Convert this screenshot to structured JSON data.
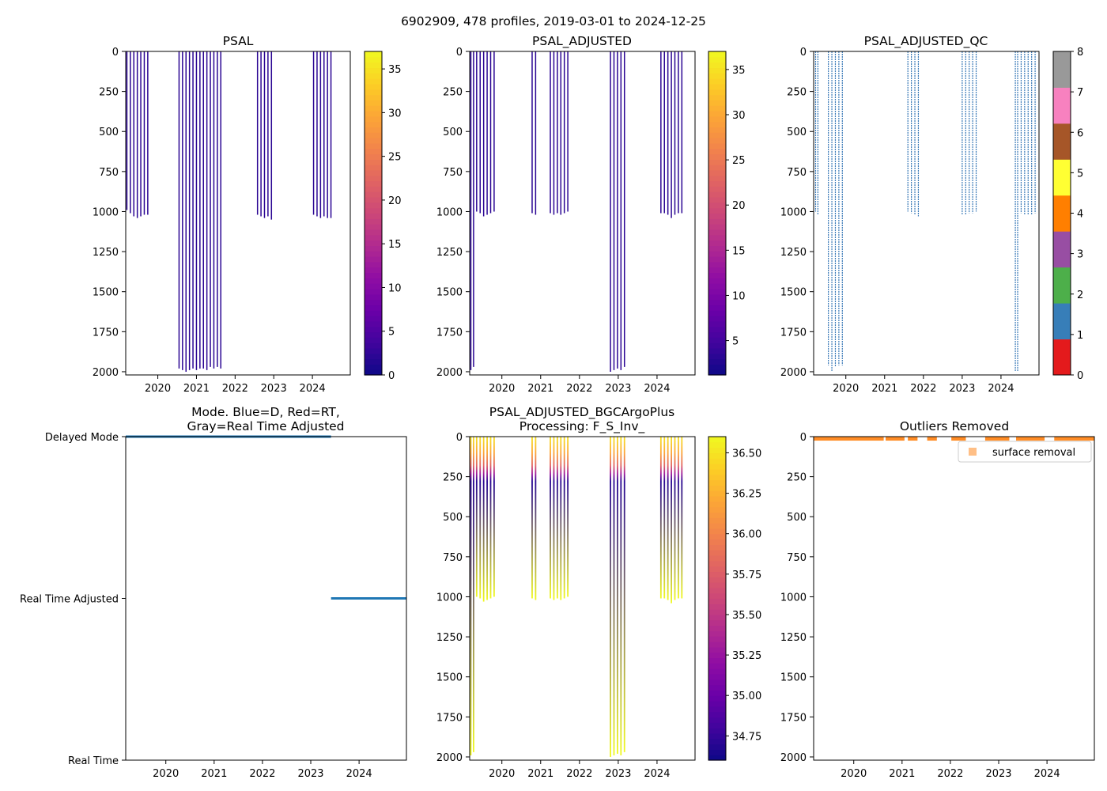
{
  "figure": {
    "suptitle": "6902909, 478 profiles, 2019-03-01 to 2024-12-25"
  },
  "colors": {
    "profile_line": "#2a0593",
    "qc_line": "#3a7ab8",
    "mode_line": "#1f77b4",
    "outlier": "#ff7f0e",
    "plasma": [
      "#0d0887",
      "#41049d",
      "#6a00a8",
      "#8f0da4",
      "#b12a90",
      "#cc4778",
      "#e16462",
      "#f2844b",
      "#fca636",
      "#fcce25",
      "#f0f921"
    ],
    "qc_palette": [
      "#e41a1c",
      "#377eb8",
      "#4daf4a",
      "#984ea3",
      "#ff7f00",
      "#ffff33",
      "#a65628",
      "#f781bf",
      "#999999"
    ]
  },
  "chart_data": [
    {
      "id": "psal",
      "type": "heatmap",
      "title": "PSAL",
      "xlabel": "",
      "ylabel": "",
      "xlim": [
        2019.17,
        2024.98
      ],
      "ylim": [
        2020,
        0
      ],
      "x_ticks": [
        2020,
        2021,
        2022,
        2023,
        2024
      ],
      "y_ticks": [
        0,
        250,
        500,
        750,
        1000,
        1250,
        1500,
        1750,
        2000
      ],
      "profiles": [
        {
          "t": 2019.2,
          "depth": 990
        },
        {
          "t": 2019.29,
          "depth": 1010
        },
        {
          "t": 2019.38,
          "depth": 1030
        },
        {
          "t": 2019.47,
          "depth": 1040
        },
        {
          "t": 2019.56,
          "depth": 1030
        },
        {
          "t": 2019.65,
          "depth": 1020
        },
        {
          "t": 2019.74,
          "depth": 1020
        },
        {
          "t": 2020.55,
          "depth": 1980
        },
        {
          "t": 2020.64,
          "depth": 1990
        },
        {
          "t": 2020.73,
          "depth": 2000
        },
        {
          "t": 2020.82,
          "depth": 1990
        },
        {
          "t": 2020.91,
          "depth": 1980
        },
        {
          "t": 2021.0,
          "depth": 1990
        },
        {
          "t": 2021.09,
          "depth": 1980
        },
        {
          "t": 2021.18,
          "depth": 1980
        },
        {
          "t": 2021.27,
          "depth": 1990
        },
        {
          "t": 2021.36,
          "depth": 1970
        },
        {
          "t": 2021.45,
          "depth": 1980
        },
        {
          "t": 2021.54,
          "depth": 1970
        },
        {
          "t": 2021.63,
          "depth": 1980
        },
        {
          "t": 2022.58,
          "depth": 1020
        },
        {
          "t": 2022.67,
          "depth": 1030
        },
        {
          "t": 2022.76,
          "depth": 1040
        },
        {
          "t": 2022.85,
          "depth": 1030
        },
        {
          "t": 2022.94,
          "depth": 1050
        },
        {
          "t": 2024.03,
          "depth": 1020
        },
        {
          "t": 2024.12,
          "depth": 1030
        },
        {
          "t": 2024.21,
          "depth": 1040
        },
        {
          "t": 2024.3,
          "depth": 1030
        },
        {
          "t": 2024.39,
          "depth": 1040
        },
        {
          "t": 2024.48,
          "depth": 1040
        }
      ],
      "colorbar": {
        "colormap": "plasma_r",
        "range": [
          0,
          37
        ],
        "ticks": [
          0,
          5,
          10,
          15,
          20,
          25,
          30,
          35
        ],
        "tick_labels": [
          "0",
          "5",
          "10",
          "15",
          "20",
          "25",
          "30",
          "35"
        ]
      }
    },
    {
      "id": "psal_adj",
      "type": "heatmap",
      "title": "PSAL_ADJUSTED",
      "xlabel": "",
      "ylabel": "",
      "xlim": [
        2019.17,
        2024.98
      ],
      "ylim": [
        2020,
        0
      ],
      "x_ticks": [
        2020,
        2021,
        2022,
        2023,
        2024
      ],
      "y_ticks": [
        0,
        250,
        500,
        750,
        1000,
        1250,
        1500,
        1750,
        2000
      ],
      "profiles": [
        {
          "t": 2019.2,
          "depth": 1990
        },
        {
          "t": 2019.27,
          "depth": 1970
        },
        {
          "t": 2019.35,
          "depth": 1000
        },
        {
          "t": 2019.44,
          "depth": 1010
        },
        {
          "t": 2019.53,
          "depth": 1030
        },
        {
          "t": 2019.62,
          "depth": 1020
        },
        {
          "t": 2019.71,
          "depth": 1010
        },
        {
          "t": 2019.8,
          "depth": 1000
        },
        {
          "t": 2020.78,
          "depth": 1010
        },
        {
          "t": 2020.87,
          "depth": 1020
        },
        {
          "t": 2021.25,
          "depth": 1010
        },
        {
          "t": 2021.34,
          "depth": 1020
        },
        {
          "t": 2021.43,
          "depth": 1010
        },
        {
          "t": 2021.52,
          "depth": 1020
        },
        {
          "t": 2021.61,
          "depth": 1010
        },
        {
          "t": 2021.7,
          "depth": 1000
        },
        {
          "t": 2022.8,
          "depth": 2000
        },
        {
          "t": 2022.89,
          "depth": 1990
        },
        {
          "t": 2022.98,
          "depth": 1980
        },
        {
          "t": 2023.07,
          "depth": 1990
        },
        {
          "t": 2023.16,
          "depth": 1970
        },
        {
          "t": 2024.1,
          "depth": 1010
        },
        {
          "t": 2024.19,
          "depth": 1010
        },
        {
          "t": 2024.28,
          "depth": 1020
        },
        {
          "t": 2024.37,
          "depth": 1040
        },
        {
          "t": 2024.46,
          "depth": 1020
        },
        {
          "t": 2024.55,
          "depth": 1010
        },
        {
          "t": 2024.64,
          "depth": 1010
        }
      ],
      "colorbar": {
        "colormap": "plasma_r",
        "range": [
          1.2,
          37
        ],
        "ticks": [
          5,
          10,
          15,
          20,
          25,
          30,
          35
        ],
        "tick_labels": [
          "5",
          "10",
          "15",
          "20",
          "25",
          "30",
          "35"
        ]
      }
    },
    {
      "id": "psal_qc",
      "type": "heatmap",
      "title": "PSAL_ADJUSTED_QC",
      "xlabel": "",
      "ylabel": "",
      "xlim": [
        2019.17,
        2024.98
      ],
      "ylim": [
        2020,
        0
      ],
      "x_ticks": [
        2020,
        2021,
        2022,
        2023,
        2024
      ],
      "y_ticks": [
        0,
        250,
        500,
        750,
        1000,
        1250,
        1500,
        1750,
        2000
      ],
      "profiles": [
        {
          "t": 2019.22,
          "depth": 1000
        },
        {
          "t": 2019.28,
          "depth": 1020
        },
        {
          "t": 2019.55,
          "depth": 1960
        },
        {
          "t": 2019.64,
          "depth": 2000
        },
        {
          "t": 2019.73,
          "depth": 1970
        },
        {
          "t": 2019.82,
          "depth": 1960
        },
        {
          "t": 2019.91,
          "depth": 1960
        },
        {
          "t": 2021.6,
          "depth": 1000
        },
        {
          "t": 2021.69,
          "depth": 1010
        },
        {
          "t": 2021.78,
          "depth": 1020
        },
        {
          "t": 2021.87,
          "depth": 1030
        },
        {
          "t": 2023.0,
          "depth": 1020
        },
        {
          "t": 2023.09,
          "depth": 1020
        },
        {
          "t": 2023.18,
          "depth": 1010
        },
        {
          "t": 2023.27,
          "depth": 1010
        },
        {
          "t": 2023.36,
          "depth": 1000
        },
        {
          "t": 2024.37,
          "depth": 2000
        },
        {
          "t": 2024.43,
          "depth": 2000
        },
        {
          "t": 2024.52,
          "depth": 1010
        },
        {
          "t": 2024.61,
          "depth": 1020
        },
        {
          "t": 2024.7,
          "depth": 1020
        },
        {
          "t": 2024.79,
          "depth": 1020
        },
        {
          "t": 2024.88,
          "depth": 1010
        }
      ],
      "colorbar": {
        "colormap": "qc",
        "range": [
          0,
          8
        ],
        "ticks": [
          0,
          1,
          2,
          3,
          4,
          5,
          6,
          7,
          8
        ],
        "tick_labels": [
          "0",
          "1",
          "2",
          "3",
          "4",
          "5",
          "6",
          "7",
          "8"
        ]
      }
    },
    {
      "id": "mode",
      "type": "line",
      "title": "Mode. Blue=D, Red=RT,",
      "title2": "Gray=Real Time Adjusted",
      "xlabel": "",
      "ylabel": "",
      "xlim": [
        2019.17,
        2024.98
      ],
      "ylim": [
        0,
        2
      ],
      "x_ticks": [
        2020,
        2021,
        2022,
        2023,
        2024
      ],
      "y_ticks": [
        2,
        1,
        0
      ],
      "y_tick_labels": [
        "Delayed Mode",
        "Real Time Adjusted",
        "Real Time"
      ],
      "series": [
        {
          "name": "Delayed Mode",
          "x": [
            2019.17,
            2023.42
          ],
          "y": [
            2,
            2
          ]
        },
        {
          "name": "Real Time Adjusted",
          "x": [
            2023.42,
            2024.98
          ],
          "y": [
            1,
            1
          ]
        }
      ]
    },
    {
      "id": "bgc",
      "type": "heatmap",
      "title": "PSAL_ADJUSTED_BGCArgoPlus",
      "title2": "Processing: F_S_Inv_",
      "xlabel": "",
      "ylabel": "",
      "xlim": [
        2019.17,
        2024.98
      ],
      "ylim": [
        2020,
        0
      ],
      "x_ticks": [
        2020,
        2021,
        2022,
        2023,
        2024
      ],
      "y_ticks": [
        0,
        250,
        500,
        750,
        1000,
        1250,
        1500,
        1750,
        2000
      ],
      "profiles": [
        {
          "t": 2019.2,
          "depth": 1990
        },
        {
          "t": 2019.27,
          "depth": 1970
        },
        {
          "t": 2019.35,
          "depth": 1000
        },
        {
          "t": 2019.44,
          "depth": 1010
        },
        {
          "t": 2019.53,
          "depth": 1030
        },
        {
          "t": 2019.62,
          "depth": 1020
        },
        {
          "t": 2019.71,
          "depth": 1010
        },
        {
          "t": 2019.8,
          "depth": 1000
        },
        {
          "t": 2020.78,
          "depth": 1010
        },
        {
          "t": 2020.87,
          "depth": 1020
        },
        {
          "t": 2021.25,
          "depth": 1010
        },
        {
          "t": 2021.34,
          "depth": 1020
        },
        {
          "t": 2021.43,
          "depth": 1010
        },
        {
          "t": 2021.52,
          "depth": 1020
        },
        {
          "t": 2021.61,
          "depth": 1010
        },
        {
          "t": 2021.7,
          "depth": 1000
        },
        {
          "t": 2022.8,
          "depth": 2000
        },
        {
          "t": 2022.89,
          "depth": 1990
        },
        {
          "t": 2022.98,
          "depth": 1980
        },
        {
          "t": 2023.07,
          "depth": 1990
        },
        {
          "t": 2023.16,
          "depth": 1970
        },
        {
          "t": 2024.1,
          "depth": 1010
        },
        {
          "t": 2024.19,
          "depth": 1010
        },
        {
          "t": 2024.28,
          "depth": 1020
        },
        {
          "t": 2024.37,
          "depth": 1040
        },
        {
          "t": 2024.46,
          "depth": 1020
        },
        {
          "t": 2024.55,
          "depth": 1010
        },
        {
          "t": 2024.64,
          "depth": 1010
        }
      ],
      "profile_gradient": [
        {
          "depth": 0,
          "value": 36.5
        },
        {
          "depth": 100,
          "value": 36.2
        },
        {
          "depth": 180,
          "value": 35.8
        },
        {
          "depth": 230,
          "value": 35.3
        },
        {
          "depth": 280,
          "value": 34.7
        }
      ],
      "colorbar": {
        "colormap": "plasma_r",
        "range": [
          34.6,
          36.6
        ],
        "ticks": [
          34.75,
          35.0,
          35.25,
          35.5,
          35.75,
          36.0,
          36.25,
          36.5
        ],
        "tick_labels": [
          "34.75",
          "35.00",
          "35.25",
          "35.50",
          "35.75",
          "36.00",
          "36.25",
          "36.50"
        ]
      }
    },
    {
      "id": "outliers",
      "type": "scatter",
      "title": "Outliers Removed",
      "xlabel": "",
      "ylabel": "",
      "xlim": [
        2019.17,
        2024.98
      ],
      "ylim": [
        2020,
        0
      ],
      "x_ticks": [
        2020,
        2021,
        2022,
        2023,
        2024
      ],
      "y_ticks": [
        0,
        250,
        500,
        750,
        1000,
        1250,
        1500,
        1750,
        2000
      ],
      "legend": {
        "label": "surface removal",
        "position": "upper right"
      },
      "segments": [
        [
          2019.17,
          2020.62
        ],
        [
          2020.66,
          2021.05
        ],
        [
          2021.12,
          2021.32
        ],
        [
          2021.52,
          2021.72
        ],
        [
          2022.02,
          2022.32
        ],
        [
          2022.72,
          2023.22
        ],
        [
          2023.36,
          2023.95
        ],
        [
          2024.15,
          2024.98
        ]
      ],
      "depth_range": [
        5,
        20
      ]
    }
  ]
}
